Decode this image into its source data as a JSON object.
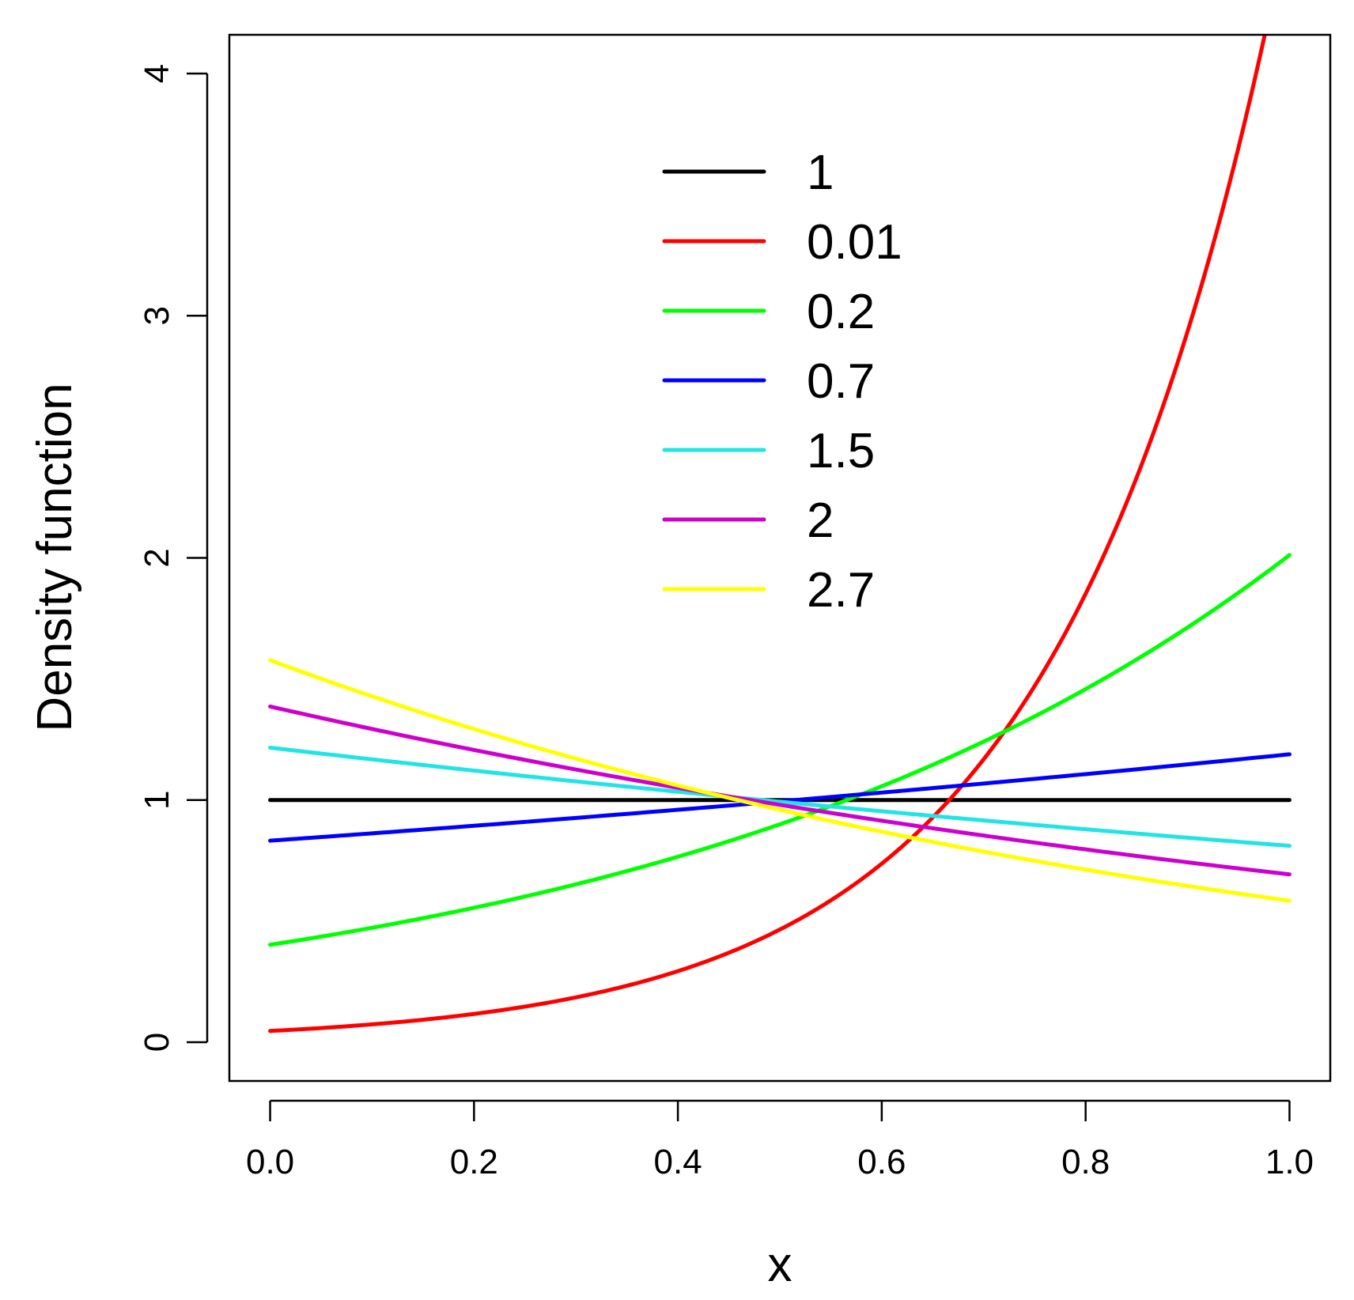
{
  "chart_data": {
    "type": "line",
    "title": "",
    "xlabel": "x",
    "ylabel": "Density function",
    "xlim": [
      -0.04,
      1.04
    ],
    "ylim": [
      -0.16,
      4.16
    ],
    "xticks": [
      0.0,
      0.2,
      0.4,
      0.6,
      0.8,
      1.0
    ],
    "xtick_labels": [
      "0.0",
      "0.2",
      "0.4",
      "0.6",
      "0.8",
      "1.0"
    ],
    "yticks": [
      0,
      1,
      2,
      3,
      4
    ],
    "ytick_labels": [
      "0",
      "1",
      "2",
      "3",
      "4"
    ],
    "grid": false,
    "legend_position": "top-center",
    "x_samples": 201,
    "series": [
      {
        "name": "1",
        "label": "1",
        "param": 1,
        "color": "#000000"
      },
      {
        "name": "0.01",
        "label": "0.01",
        "param": 0.01,
        "color": "#ff0000"
      },
      {
        "name": "0.2",
        "label": "0.2",
        "param": 0.2,
        "color": "#00ff00"
      },
      {
        "name": "0.7",
        "label": "0.7",
        "param": 0.7,
        "color": "#0000ff"
      },
      {
        "name": "1.5",
        "label": "1.5",
        "param": 1.5,
        "color": "#22e4e4"
      },
      {
        "name": "2",
        "label": "2",
        "param": 2,
        "color": "#cd00cd"
      },
      {
        "name": "2.7",
        "label": "2.7",
        "param": 2.7,
        "color": "#ffff00"
      }
    ],
    "density_formula": "f(x) = a^(1-x) * ln(a) / (a - 1), with f(x) = 1 when a = 1"
  }
}
